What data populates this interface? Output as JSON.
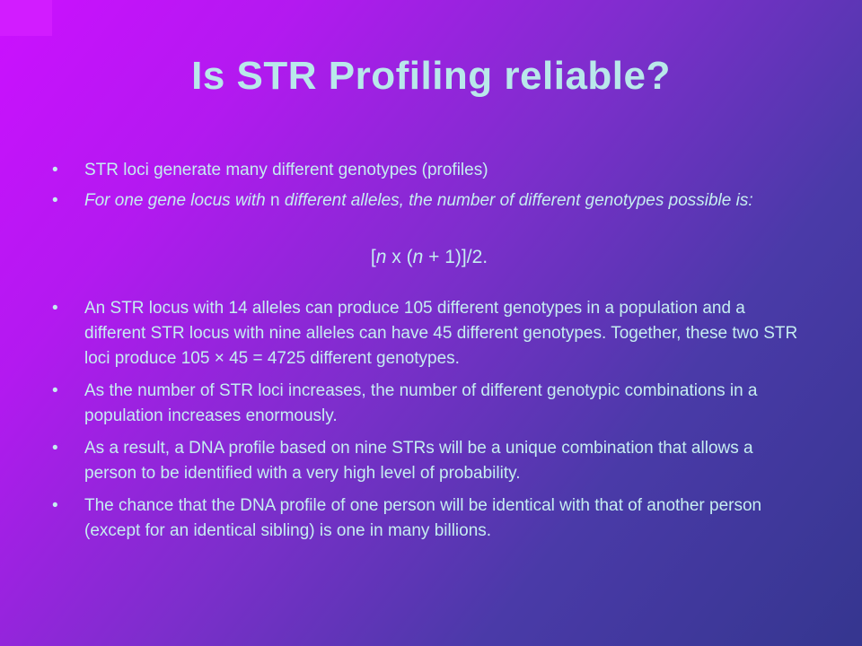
{
  "slide": {
    "title": "Is STR Profiling reliable?",
    "bullet_glyph": "•",
    "bullets": [
      {
        "text": "STR loci generate many different genotypes (profiles)"
      },
      {
        "part1": "For one gene locus with ",
        "part2": "n",
        "part3": " different alleles, the number of different genotypes possible is:"
      },
      {
        "text": "An STR locus with 14 alleles can produce 105 different genotypes in a population and a different STR locus with nine alleles can have 45 different genotypes. Together, these two STR loci produce 105 × 45 = 4725 different genotypes."
      },
      {
        "text": "As the number of STR loci increases, the number of different genotypic combinations in a population increases enormously."
      },
      {
        "text": "As a result, a DNA profile based on nine STRs will be a unique combination that allows a person to be identified with a very high level of probability."
      },
      {
        "text": "The chance that the DNA profile of one person will be identical with that of another person (except for an identical sibling) is one in many billions."
      }
    ],
    "formula": {
      "open": "[",
      "n1": "n",
      "mid": " x (",
      "n2": "n",
      "close": " + 1)]/2."
    }
  },
  "colors": {
    "title": "#b9e8ea",
    "text": "#c5eef0",
    "background_start": "#cc10ff",
    "background_end": "#35368f"
  }
}
